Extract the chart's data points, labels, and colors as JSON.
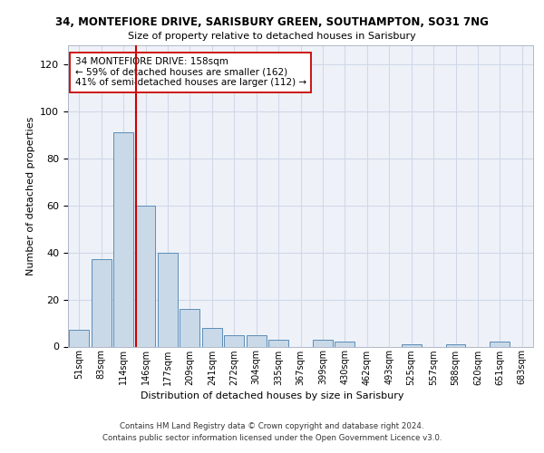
{
  "title_line1": "34, MONTEFIORE DRIVE, SARISBURY GREEN, SOUTHAMPTON, SO31 7NG",
  "title_line2": "Size of property relative to detached houses in Sarisbury",
  "xlabel": "Distribution of detached houses by size in Sarisbury",
  "ylabel": "Number of detached properties",
  "bin_labels": [
    "51sqm",
    "83sqm",
    "114sqm",
    "146sqm",
    "177sqm",
    "209sqm",
    "241sqm",
    "272sqm",
    "304sqm",
    "335sqm",
    "367sqm",
    "399sqm",
    "430sqm",
    "462sqm",
    "493sqm",
    "525sqm",
    "557sqm",
    "588sqm",
    "620sqm",
    "651sqm",
    "683sqm"
  ],
  "bar_heights": [
    7,
    37,
    91,
    60,
    40,
    16,
    8,
    5,
    5,
    3,
    0,
    3,
    2,
    0,
    0,
    1,
    0,
    1,
    0,
    2,
    0
  ],
  "bar_color": "#c9d9e8",
  "bar_edge_color": "#5b8db8",
  "vline_color": "#cc0000",
  "annotation_text": "34 MONTEFIORE DRIVE: 158sqm\n← 59% of detached houses are smaller (162)\n41% of semi-detached houses are larger (112) →",
  "annotation_box_color": "#ffffff",
  "annotation_box_edge": "#cc0000",
  "ylim": [
    0,
    128
  ],
  "yticks": [
    0,
    20,
    40,
    60,
    80,
    100,
    120
  ],
  "grid_color": "#d0d8e8",
  "footer": "Contains HM Land Registry data © Crown copyright and database right 2024.\nContains public sector information licensed under the Open Government Licence v3.0.",
  "bg_color": "#eef2f8"
}
